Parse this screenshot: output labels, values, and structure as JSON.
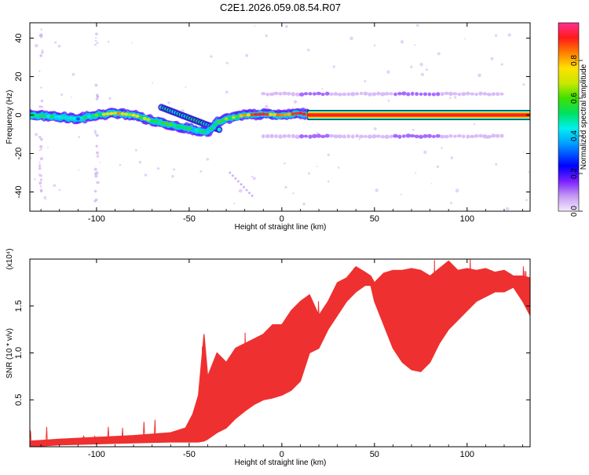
{
  "figure_title": "C2E1.2026.059.08.54.R07",
  "chart_data": [
    {
      "type": "heatmap",
      "xlabel": "Height of straight line (km)",
      "ylabel": "Frequency (Hz)",
      "xlim": [
        -136,
        134
      ],
      "ylim": [
        -50,
        48
      ],
      "xticks": [
        -100,
        -50,
        0,
        50,
        100
      ],
      "yticks": [
        -40,
        -20,
        0,
        20,
        40
      ],
      "grid": false,
      "colorbar": {
        "label": "Normalized spectral amplitude",
        "range": [
          0,
          1
        ],
        "ticks": [
          0.0,
          0.2,
          0.4,
          0.6,
          0.8
        ],
        "tick_labels": [
          "0.0",
          "0.2",
          "0.4",
          "0.6",
          "0.8"
        ]
      },
      "ridge": {
        "description_values_only": true,
        "x": [
          -136,
          -120,
          -110,
          -100,
          -90,
          -80,
          -70,
          -60,
          -50,
          -45,
          -40,
          -35,
          -30,
          -25,
          -20,
          -10,
          0,
          5,
          10,
          14,
          134
        ],
        "y": [
          0,
          -1,
          -2,
          0,
          1,
          0,
          -3,
          -5,
          -7,
          -8,
          -9,
          -4,
          -2,
          -1,
          0,
          0.5,
          0,
          0.5,
          1,
          0,
          0
        ],
        "amplitude": [
          0.55,
          0.45,
          0.4,
          0.55,
          0.75,
          0.7,
          0.6,
          0.55,
          0.5,
          0.45,
          0.45,
          0.55,
          0.6,
          0.65,
          0.8,
          0.85,
          0.8,
          0.85,
          0.9,
          0.95,
          0.95
        ]
      },
      "sidebands_hz": [
        11,
        -11
      ],
      "sideband_x_range": [
        -10,
        120
      ]
    },
    {
      "type": "line",
      "title": "",
      "xlabel": "Height of straight line (km)",
      "ylabel": "SNR (10 * v/v)",
      "y_multiplier": "(x10⁴)",
      "xlim": [
        -136,
        134
      ],
      "ylim": [
        0,
        2.0
      ],
      "xticks": [
        -100,
        -50,
        0,
        50,
        100
      ],
      "yticks": [
        0.5,
        1.0,
        1.5
      ],
      "ytick_labels": [
        "0.5",
        "1.0",
        "1.5"
      ],
      "color": "#ef3030",
      "series": [
        {
          "name": "SNR upper envelope",
          "x": [
            -136,
            -120,
            -100,
            -80,
            -60,
            -52,
            -48,
            -45,
            -42,
            -40,
            -35,
            -30,
            -25,
            -20,
            -15,
            -10,
            -5,
            0,
            5,
            10,
            15,
            20,
            25,
            30,
            35,
            40,
            45,
            48,
            50,
            55,
            60,
            65,
            70,
            75,
            80,
            85,
            90,
            95,
            100,
            105,
            110,
            115,
            120,
            125,
            130,
            134
          ],
          "values": [
            0.06,
            0.08,
            0.1,
            0.12,
            0.15,
            0.2,
            0.35,
            0.55,
            1.2,
            0.75,
            1.0,
            0.9,
            1.05,
            1.1,
            1.15,
            1.2,
            1.3,
            1.3,
            1.45,
            1.55,
            1.62,
            1.4,
            1.55,
            1.75,
            1.8,
            1.92,
            1.86,
            1.82,
            1.75,
            1.85,
            1.88,
            1.88,
            1.9,
            1.88,
            1.82,
            1.9,
            1.98,
            1.88,
            1.9,
            1.88,
            1.9,
            1.86,
            1.88,
            1.82,
            1.82,
            1.8
          ]
        },
        {
          "name": "SNR lower envelope",
          "x": [
            -136,
            -120,
            -100,
            -80,
            -60,
            -52,
            -48,
            -45,
            -42,
            -40,
            -35,
            -30,
            -25,
            -20,
            -15,
            -10,
            -5,
            0,
            5,
            10,
            15,
            20,
            25,
            30,
            35,
            40,
            45,
            48,
            50,
            55,
            60,
            65,
            70,
            75,
            80,
            85,
            90,
            95,
            100,
            105,
            110,
            115,
            120,
            125,
            130,
            134
          ],
          "values": [
            0.0,
            0.02,
            0.03,
            0.04,
            0.05,
            0.05,
            0.05,
            0.05,
            0.06,
            0.08,
            0.15,
            0.2,
            0.3,
            0.38,
            0.45,
            0.5,
            0.52,
            0.55,
            0.6,
            0.7,
            1.0,
            1.05,
            1.25,
            1.4,
            1.55,
            1.65,
            1.72,
            1.72,
            1.55,
            1.3,
            1.05,
            0.9,
            0.82,
            0.8,
            0.9,
            1.1,
            1.25,
            1.35,
            1.45,
            1.55,
            1.6,
            1.65,
            1.65,
            1.7,
            1.55,
            1.4
          ]
        }
      ]
    }
  ]
}
